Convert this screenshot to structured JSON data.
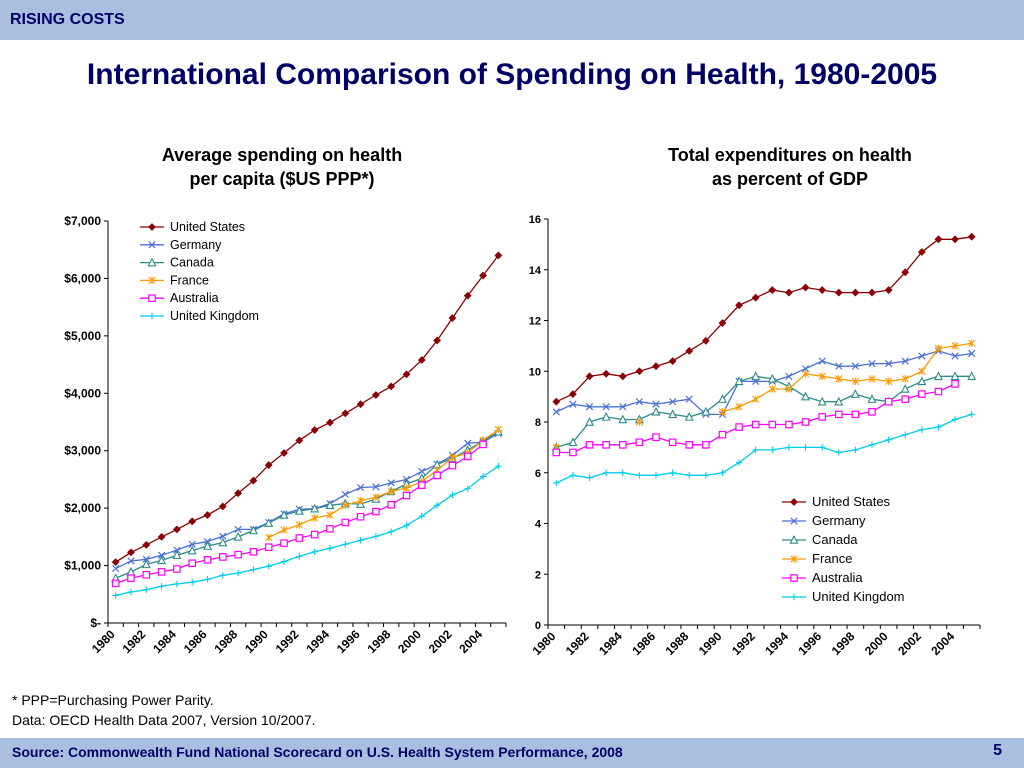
{
  "header": {
    "section": "RISING COSTS"
  },
  "title": "International Comparison of Spending on Health, 1980-2005",
  "charts": {
    "left": {
      "title_line1": "Average spending on health",
      "title_line2": "per capita ($US PPP*)"
    },
    "right": {
      "title_line1": "Total expenditures on health",
      "title_line2": "as percent of GDP"
    }
  },
  "footnotes": {
    "ppp": "* PPP=Purchasing Power Parity.",
    "data": "Data: OECD Health Data 2007, Version 10/2007."
  },
  "footer": {
    "source": "Source: Commonwealth Fund National Scorecard on U.S. Health System Performance, 2008",
    "page": "5"
  },
  "colors": {
    "United States": "#8b0000",
    "Germany": "#4a6fd8",
    "Canada": "#2e8b8b",
    "France": "#ff9900",
    "Australia": "#ff00ff",
    "United Kingdom": "#00ccee"
  },
  "chart_data": [
    {
      "type": "line",
      "title": "Average spending on health per capita ($US PPP*)",
      "x": [
        1980,
        1981,
        1982,
        1983,
        1984,
        1985,
        1986,
        1987,
        1988,
        1989,
        1990,
        1991,
        1992,
        1993,
        1994,
        1995,
        1996,
        1997,
        1998,
        1999,
        2000,
        2001,
        2002,
        2003,
        2004,
        2005
      ],
      "x_tick_labels": [
        "1980",
        "1982",
        "1984",
        "1986",
        "1988",
        "1990",
        "1992",
        "1994",
        "1996",
        "1998",
        "2000",
        "2002",
        "2004"
      ],
      "ylim": [
        0,
        7000
      ],
      "y_tick_labels": [
        "$-",
        "$1,000",
        "$2,000",
        "$3,000",
        "$4,000",
        "$5,000",
        "$6,000",
        "$7,000"
      ],
      "legend_position": "top-left",
      "series": [
        {
          "name": "United States",
          "marker": "diamond",
          "values": [
            1060,
            1230,
            1360,
            1500,
            1630,
            1770,
            1880,
            2030,
            2260,
            2480,
            2750,
            2960,
            3180,
            3360,
            3490,
            3650,
            3810,
            3970,
            4120,
            4330,
            4580,
            4920,
            5310,
            5700,
            6050,
            6400
          ]
        },
        {
          "name": "Germany",
          "marker": "x",
          "values": [
            950,
            1080,
            1110,
            1180,
            1270,
            1370,
            1420,
            1510,
            1630,
            1630,
            1750,
            1900,
            1980,
            1990,
            2080,
            2240,
            2360,
            2370,
            2440,
            2500,
            2640,
            2760,
            2920,
            3130,
            3150,
            3300
          ]
        },
        {
          "name": "Canada",
          "marker": "triangle",
          "values": [
            780,
            890,
            1020,
            1090,
            1180,
            1260,
            1340,
            1400,
            1500,
            1610,
            1740,
            1880,
            1950,
            1990,
            2050,
            2080,
            2070,
            2160,
            2290,
            2420,
            2520,
            2760,
            2870,
            3010,
            3170,
            3330
          ]
        },
        {
          "name": "France",
          "marker": "star",
          "values": [
            null,
            null,
            null,
            null,
            null,
            null,
            null,
            null,
            null,
            null,
            1490,
            1620,
            1710,
            1830,
            1880,
            2050,
            2130,
            2190,
            2290,
            2350,
            2460,
            2660,
            2880,
            2960,
            3180,
            3370
          ]
        },
        {
          "name": "Australia",
          "marker": "square",
          "values": [
            690,
            780,
            840,
            890,
            940,
            1040,
            1100,
            1150,
            1190,
            1240,
            1320,
            1390,
            1480,
            1540,
            1640,
            1750,
            1850,
            1940,
            2060,
            2220,
            2400,
            2570,
            2740,
            2900,
            3110,
            null
          ]
        },
        {
          "name": "United Kingdom",
          "marker": "cross",
          "values": [
            480,
            540,
            580,
            640,
            680,
            710,
            760,
            830,
            870,
            930,
            990,
            1070,
            1160,
            1240,
            1300,
            1370,
            1440,
            1510,
            1590,
            1700,
            1860,
            2050,
            2230,
            2340,
            2550,
            2730
          ]
        }
      ]
    },
    {
      "type": "line",
      "title": "Total expenditures on health as percent of GDP",
      "x": [
        1980,
        1981,
        1982,
        1983,
        1984,
        1985,
        1986,
        1987,
        1988,
        1989,
        1990,
        1991,
        1992,
        1993,
        1994,
        1995,
        1996,
        1997,
        1998,
        1999,
        2000,
        2001,
        2002,
        2003,
        2004,
        2005
      ],
      "x_tick_labels": [
        "1980",
        "1982",
        "1984",
        "1986",
        "1988",
        "1990",
        "1992",
        "1994",
        "1996",
        "1998",
        "2000",
        "2002",
        "2004"
      ],
      "ylim": [
        0,
        16
      ],
      "y_tick_labels": [
        "0",
        "2",
        "4",
        "6",
        "8",
        "10",
        "12",
        "14",
        "16"
      ],
      "legend_position": "bottom-right",
      "series": [
        {
          "name": "United States",
          "marker": "diamond",
          "values": [
            8.8,
            9.1,
            9.8,
            9.9,
            9.8,
            10.0,
            10.2,
            10.4,
            10.8,
            11.2,
            11.9,
            12.6,
            12.9,
            13.2,
            13.1,
            13.3,
            13.2,
            13.1,
            13.1,
            13.1,
            13.2,
            13.9,
            14.7,
            15.2,
            15.2,
            15.3
          ]
        },
        {
          "name": "Germany",
          "marker": "x",
          "values": [
            8.4,
            8.7,
            8.6,
            8.6,
            8.6,
            8.8,
            8.7,
            8.8,
            8.9,
            8.3,
            8.3,
            9.6,
            9.6,
            9.6,
            9.8,
            10.1,
            10.4,
            10.2,
            10.2,
            10.3,
            10.3,
            10.4,
            10.6,
            10.8,
            10.6,
            10.7
          ]
        },
        {
          "name": "Canada",
          "marker": "triangle",
          "values": [
            7.0,
            7.2,
            8.0,
            8.2,
            8.1,
            8.1,
            8.4,
            8.3,
            8.2,
            8.4,
            8.9,
            9.6,
            9.8,
            9.7,
            9.4,
            9.0,
            8.8,
            8.8,
            9.1,
            8.9,
            8.8,
            9.3,
            9.6,
            9.8,
            9.8,
            9.8
          ]
        },
        {
          "name": "France",
          "marker": "star",
          "values": [
            7.0,
            null,
            null,
            null,
            null,
            8.0,
            null,
            null,
            null,
            null,
            8.4,
            8.6,
            8.9,
            9.3,
            9.3,
            9.9,
            9.8,
            9.7,
            9.6,
            9.7,
            9.6,
            9.7,
            10.0,
            10.9,
            11.0,
            11.1
          ]
        },
        {
          "name": "Australia",
          "marker": "square",
          "values": [
            6.8,
            6.8,
            7.1,
            7.1,
            7.1,
            7.2,
            7.4,
            7.2,
            7.1,
            7.1,
            7.5,
            7.8,
            7.9,
            7.9,
            7.9,
            8.0,
            8.2,
            8.3,
            8.3,
            8.4,
            8.8,
            8.9,
            9.1,
            9.2,
            9.5,
            null
          ]
        },
        {
          "name": "United Kingdom",
          "marker": "cross",
          "values": [
            5.6,
            5.9,
            5.8,
            6.0,
            6.0,
            5.9,
            5.9,
            6.0,
            5.9,
            5.9,
            6.0,
            6.4,
            6.9,
            6.9,
            7.0,
            7.0,
            7.0,
            6.8,
            6.9,
            7.1,
            7.3,
            7.5,
            7.7,
            7.8,
            8.1,
            8.3
          ]
        }
      ]
    }
  ]
}
